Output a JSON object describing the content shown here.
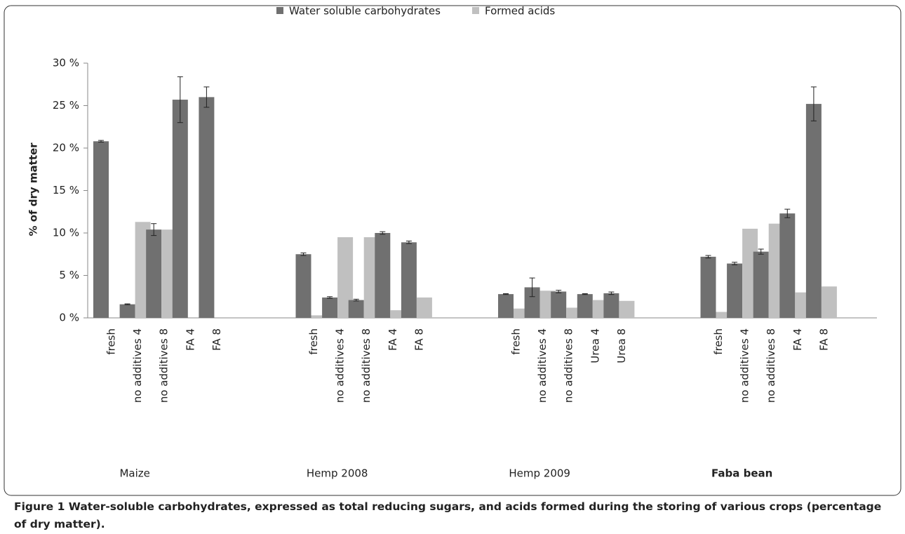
{
  "chart_data": {
    "type": "bar",
    "groups": [
      {
        "name": "Maize",
        "categories": [
          "fresh",
          "no additives 4",
          "no additives 8",
          "FA 4",
          "FA 8"
        ]
      },
      {
        "name": "Hemp 2008",
        "categories": [
          "fresh",
          "no additives 4",
          "no additives 8",
          "FA 4",
          "FA 8"
        ]
      },
      {
        "name": "Hemp 2009",
        "categories": [
          "fresh",
          "no additives 4",
          "no additives 8",
          "Urea 4",
          "Urea 8"
        ]
      },
      {
        "name": "Faba bean",
        "categories": [
          "fresh",
          "no additives 4",
          "no additives 8",
          "FA 4",
          "FA 8"
        ]
      }
    ],
    "series": [
      {
        "name": "Water soluble carbohydrates",
        "color": "#707070",
        "values": [
          20.8,
          1.6,
          10.4,
          25.7,
          26.0,
          7.5,
          2.4,
          2.1,
          10.0,
          8.9,
          2.8,
          3.6,
          3.1,
          2.8,
          2.9,
          7.2,
          6.4,
          7.8,
          12.3,
          25.2
        ],
        "errors": [
          0.1,
          0.05,
          0.7,
          2.7,
          1.2,
          0.15,
          0.1,
          0.1,
          0.15,
          0.15,
          0.05,
          1.1,
          0.15,
          0.05,
          0.15,
          0.15,
          0.15,
          0.3,
          0.5,
          2.0
        ]
      },
      {
        "name": "Formed acids",
        "color": "#c0c0c0",
        "values": [
          null,
          11.3,
          10.4,
          null,
          null,
          0.3,
          9.5,
          9.5,
          0.9,
          2.4,
          1.1,
          3.2,
          1.2,
          2.1,
          2.0,
          0.7,
          10.5,
          11.1,
          3.0,
          3.7
        ]
      }
    ],
    "ylabel": "% of dry matter",
    "ylim": [
      0,
      30
    ],
    "yticks": [
      {
        "value": 0,
        "label": "0 %"
      },
      {
        "value": 5,
        "label": "5 %"
      },
      {
        "value": 10,
        "label": "10 %"
      },
      {
        "value": 15,
        "label": "15 %"
      },
      {
        "value": 20,
        "label": "20 %"
      },
      {
        "value": 25,
        "label": "25 %"
      },
      {
        "value": 30,
        "label": "30 %"
      }
    ],
    "legend": "top"
  },
  "caption": {
    "label": "Figure 1",
    "text": "Water-soluble carbohydrates, expressed as total reducing sugars, and acids formed during the storing of various crops (percentage of dry matter)."
  }
}
